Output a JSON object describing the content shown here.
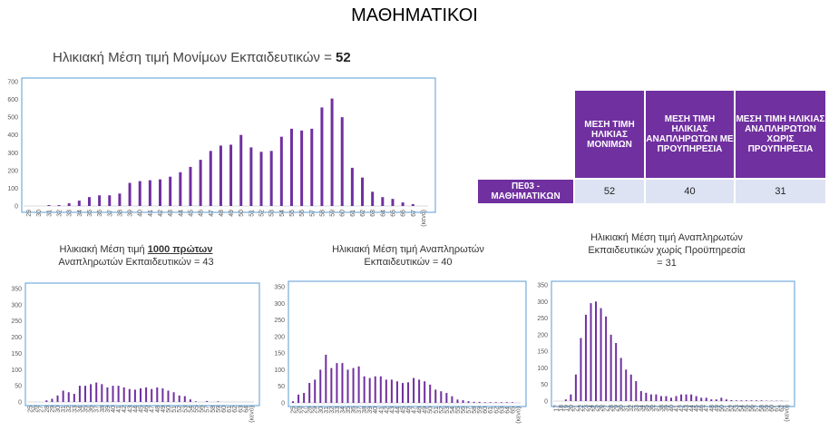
{
  "page_title": "ΜΑΘΗΜΑΤΙΚΟΙ",
  "main_chart_title": {
    "text": "Ηλικιακή Μέση τιμή Μονίμων Εκπαιδευτικών = ",
    "value": "52"
  },
  "small_titles": {
    "first": {
      "pre": "Ηλικιακή Μέση τιμή ",
      "bold": "1000 πρώτων",
      "line2": "Αναπληρωτών Εκπαιδευτικών = 43"
    },
    "second": {
      "line1": "Ηλικιακή Μέση τιμή Αναπληρωτών",
      "line2": "Εκπαιδευτικών = 40"
    },
    "third": {
      "line1": "Ηλικιακή Μέση τιμή Αναπληρωτών",
      "line2": "Εκπαιδευτικών χωρίς Προϋπηρεσία",
      "line3": "= 31"
    }
  },
  "table": {
    "headers": [
      "ΜΕΣΗ ΤΙΜΗ ΗΛΙΚΙΑΣ ΜΟΝΙΜΩΝ",
      "ΜΕΣΗ ΤΙΜΗ ΗΛΙΚΙΑΣ ΑΝΑΠΛΗΡΩΤΩΝ ΜΕ ΠΡΟΥΠΗΡΕΣΙΑ",
      "ΜΕΣΗ ΤΙΜΗ ΗΛΙΚΙΑΣ ΑΝΑΠΛΗΡΩΤΩΝ ΧΩΡΙΣ ΠΡΟΥΠΗΡΕΣΙΑ"
    ],
    "row_label": "ΠΕ03 - ΜΑΘΗΜΑΤΙΚΩΝ",
    "values": [
      "52",
      "40",
      "31"
    ]
  },
  "colors": {
    "bar": "#7030a0",
    "axis": "#d9d9d9",
    "frame": "#5b9bd5",
    "header_bg": "#7030a0",
    "cell_bg": "#dde3f3"
  },
  "chart_data": [
    {
      "type": "bar",
      "categories": [
        "29",
        "30",
        "31",
        "32",
        "33",
        "34",
        "35",
        "36",
        "37",
        "38",
        "39",
        "40",
        "41",
        "42",
        "43",
        "44",
        "45",
        "46",
        "47",
        "48",
        "49",
        "50",
        "51",
        "52",
        "53",
        "54",
        "55",
        "56",
        "57",
        "58",
        "59",
        "60",
        "61",
        "62",
        "63",
        "64",
        "65",
        "66",
        "67",
        "(κενό)"
      ],
      "values": [
        0,
        0,
        5,
        5,
        15,
        30,
        50,
        60,
        60,
        70,
        130,
        140,
        145,
        150,
        165,
        190,
        220,
        260,
        310,
        340,
        345,
        400,
        330,
        305,
        310,
        390,
        435,
        425,
        435,
        555,
        605,
        500,
        215,
        160,
        80,
        50,
        40,
        20,
        10,
        0
      ],
      "ylim": [
        0,
        700
      ],
      "yticks": [
        0,
        100,
        200,
        300,
        400,
        500,
        600,
        700
      ],
      "grid": false
    },
    {
      "type": "bar",
      "categories": [
        "25",
        "26",
        "27",
        "28",
        "29",
        "30",
        "31",
        "32",
        "33",
        "34",
        "35",
        "36",
        "37",
        "38",
        "39",
        "40",
        "41",
        "42",
        "43",
        "44",
        "45",
        "46",
        "47",
        "48",
        "49",
        "50",
        "51",
        "52",
        "53",
        "54",
        "55",
        "56",
        "57",
        "58",
        "59",
        "60",
        "61",
        "62",
        "63",
        "64",
        "(κενό)"
      ],
      "values": [
        0,
        0,
        0,
        5,
        10,
        20,
        35,
        30,
        25,
        50,
        50,
        55,
        60,
        55,
        45,
        50,
        50,
        45,
        40,
        38,
        42,
        45,
        40,
        45,
        42,
        35,
        30,
        20,
        18,
        8,
        2,
        0,
        3,
        0,
        2,
        0,
        0,
        0,
        0,
        0,
        0
      ],
      "ylim": [
        0,
        350
      ],
      "yticks": [
        0,
        50,
        100,
        150,
        200,
        250,
        300,
        350
      ],
      "grid": false
    },
    {
      "type": "bar",
      "categories": [
        "25",
        "26",
        "27",
        "28",
        "29",
        "30",
        "31",
        "32",
        "33",
        "34",
        "35",
        "36",
        "37",
        "38",
        "39",
        "40",
        "41",
        "42",
        "43",
        "44",
        "45",
        "46",
        "47",
        "48",
        "49",
        "50",
        "51",
        "52",
        "53",
        "54",
        "55",
        "56",
        "57",
        "58",
        "59",
        "60",
        "61",
        "62",
        "63",
        "64",
        "65",
        "(κενό)"
      ],
      "values": [
        5,
        25,
        30,
        60,
        70,
        100,
        145,
        105,
        120,
        120,
        100,
        105,
        110,
        80,
        75,
        80,
        80,
        70,
        70,
        65,
        60,
        62,
        75,
        70,
        65,
        55,
        40,
        35,
        30,
        20,
        10,
        8,
        5,
        3,
        3,
        2,
        2,
        2,
        2,
        2,
        2,
        0
      ],
      "ylim": [
        0,
        350
      ],
      "yticks": [
        0,
        50,
        100,
        150,
        200,
        250,
        300,
        350
      ],
      "grid": false
    },
    {
      "type": "bar",
      "categories": [
        "17",
        "18",
        "19",
        "20",
        "21",
        "22",
        "23",
        "24",
        "25",
        "26",
        "27",
        "28",
        "29",
        "30",
        "31",
        "32",
        "33",
        "34",
        "35",
        "36",
        "37",
        "38",
        "39",
        "40",
        "41",
        "42",
        "43",
        "44",
        "45",
        "46",
        "47",
        "48",
        "49",
        "50",
        "51",
        "52",
        "53",
        "54",
        "55",
        "56",
        "57",
        "58",
        "59",
        "60",
        "61",
        "62",
        "(κενό)"
      ],
      "values": [
        0,
        0,
        5,
        20,
        80,
        190,
        260,
        295,
        300,
        280,
        255,
        200,
        175,
        130,
        95,
        80,
        60,
        30,
        25,
        20,
        20,
        15,
        15,
        10,
        15,
        20,
        20,
        20,
        15,
        10,
        10,
        5,
        5,
        10,
        5,
        3,
        2,
        2,
        2,
        2,
        2,
        2,
        1,
        1,
        1,
        1,
        0
      ],
      "ylim": [
        0,
        350
      ],
      "yticks": [
        0,
        50,
        100,
        150,
        200,
        250,
        300,
        350
      ],
      "grid": false
    }
  ]
}
